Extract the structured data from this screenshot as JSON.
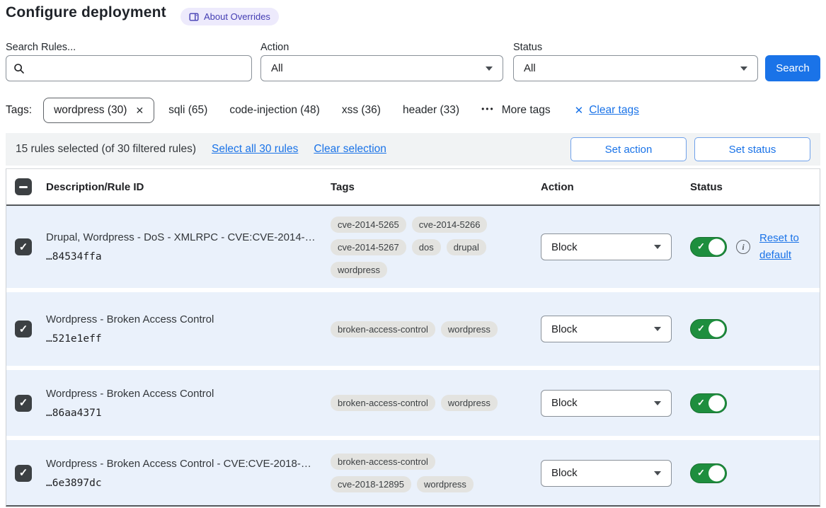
{
  "header": {
    "title": "Configure deployment",
    "about_badge": "About Overrides"
  },
  "filters": {
    "search_label": "Search Rules...",
    "action": {
      "label": "Action",
      "value": "All"
    },
    "status": {
      "label": "Status",
      "value": "All"
    },
    "search_button": "Search"
  },
  "tags_bar": {
    "label": "Tags:",
    "selected": {
      "label": "wordpress (30)"
    },
    "options": [
      "sqli (65)",
      "code-injection (48)",
      "xss (36)",
      "header (33)"
    ],
    "more_label": "More tags",
    "clear_label": "Clear tags"
  },
  "selection_bar": {
    "summary": "15 rules selected (of 30 filtered rules)",
    "select_all_label": "Select all 30 rules",
    "clear_selection_label": "Clear selection",
    "set_action_label": "Set action",
    "set_status_label": "Set status"
  },
  "table": {
    "columns": {
      "description": "Description/Rule ID",
      "tags": "Tags",
      "action": "Action",
      "status": "Status"
    },
    "rows": [
      {
        "selected": true,
        "description": "Drupal, Wordpress - DoS - XMLRPC - CVE:CVE-2014-…",
        "rule_id": "…84534ffa",
        "tags": [
          "cve-2014-5265",
          "cve-2014-5266",
          "cve-2014-5267",
          "dos",
          "drupal",
          "wordpress"
        ],
        "action": "Block",
        "status_on": true,
        "has_reset": true,
        "reset_label": "Reset to default"
      },
      {
        "selected": true,
        "description": "Wordpress - Broken Access Control",
        "rule_id": "…521e1eff",
        "tags": [
          "broken-access-control",
          "wordpress"
        ],
        "action": "Block",
        "status_on": true,
        "has_reset": false,
        "reset_label": ""
      },
      {
        "selected": true,
        "description": "Wordpress - Broken Access Control",
        "rule_id": "…86aa4371",
        "tags": [
          "broken-access-control",
          "wordpress"
        ],
        "action": "Block",
        "status_on": true,
        "has_reset": false,
        "reset_label": ""
      },
      {
        "selected": true,
        "description": "Wordpress - Broken Access Control - CVE:CVE-2018-…",
        "rule_id": "…6e3897dc",
        "tags": [
          "broken-access-control",
          "cve-2018-12895",
          "wordpress"
        ],
        "action": "Block",
        "status_on": true,
        "has_reset": false,
        "reset_label": ""
      }
    ]
  },
  "colors": {
    "accent_blue": "#1a73e8",
    "badge_purple": "#443eb3",
    "toggle_green": "#1e8e3e",
    "row_highlight": "#eaf1fb",
    "tag_pill_bg": "#e3e3e0",
    "selection_bar_bg": "#f1f3f4"
  }
}
